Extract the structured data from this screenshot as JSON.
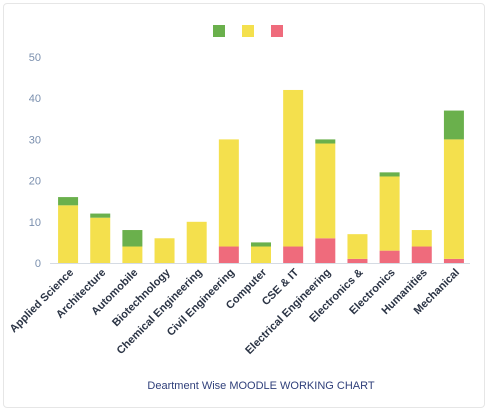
{
  "chart_data": {
    "type": "bar",
    "stacked": true,
    "title": "Deartment Wise MOODLE WORKING CHART",
    "categories": [
      "Applied Science",
      "Architecture",
      "Automobile",
      "Biotechnology",
      "Chemical Engineering",
      "Civil Engineering",
      "Computer",
      "CSE & IT",
      "Electrical Engineering",
      "Electronics &",
      "Electronics",
      "Humanities",
      "Mechanical"
    ],
    "series": [
      {
        "color": "#ef6b7c",
        "values": [
          0,
          0,
          0,
          0,
          0,
          4,
          0,
          4,
          6,
          1,
          3,
          4,
          1
        ]
      },
      {
        "color": "#f4e04d",
        "values": [
          14,
          11,
          4,
          6,
          10,
          26,
          4,
          38,
          23,
          6,
          18,
          4,
          29
        ]
      },
      {
        "color": "#6ab04c",
        "values": [
          2,
          1,
          4,
          0,
          0,
          0,
          1,
          0,
          1,
          0,
          1,
          0,
          7
        ]
      }
    ],
    "ylim": [
      0,
      50
    ],
    "yticks": [
      0,
      10,
      20,
      30,
      40,
      50
    ],
    "grid": false,
    "legend": "top-center"
  }
}
